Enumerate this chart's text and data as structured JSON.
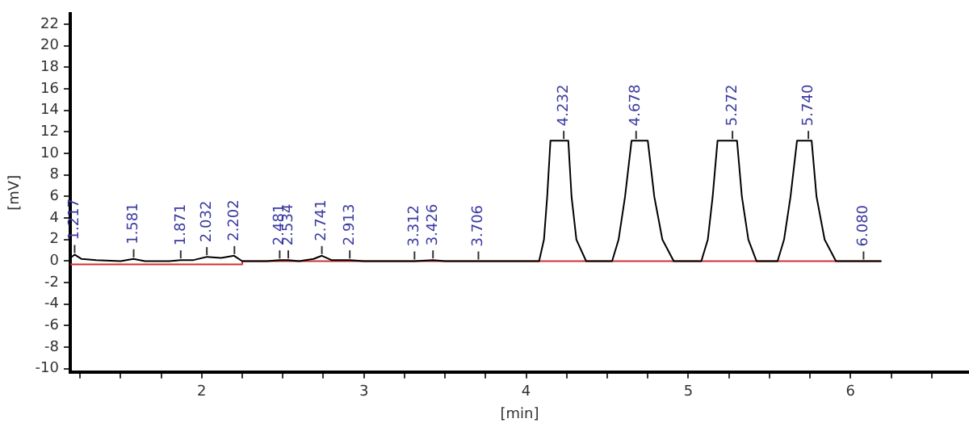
{
  "chart_data": {
    "type": "line",
    "xlabel": "[min]",
    "ylabel": "[mV]",
    "xlim": [
      1.19,
      6.73
    ],
    "ylim": [
      -10.3,
      23
    ],
    "xticks": [
      {
        "value": 1.25,
        "label": null
      },
      {
        "value": 1.5,
        "label": null
      },
      {
        "value": 1.75,
        "label": null
      },
      2,
      {
        "value": 2.25,
        "label": null
      },
      {
        "value": 2.5,
        "label": null
      },
      {
        "value": 2.75,
        "label": null
      },
      3,
      {
        "value": 3.25,
        "label": null
      },
      {
        "value": 3.5,
        "label": null
      },
      {
        "value": 3.75,
        "label": null
      },
      4,
      {
        "value": 4.25,
        "label": null
      },
      {
        "value": 4.5,
        "label": null
      },
      {
        "value": 4.75,
        "label": null
      },
      5,
      {
        "value": 5.25,
        "label": null
      },
      {
        "value": 5.5,
        "label": null
      },
      {
        "value": 5.75,
        "label": null
      },
      6,
      {
        "value": 6.25,
        "label": null
      },
      {
        "value": 6.5,
        "label": null
      }
    ],
    "yticks": [
      -10,
      -8,
      -6,
      -4,
      -2,
      0,
      2,
      4,
      6,
      8,
      10,
      12,
      14,
      16,
      18,
      20,
      22
    ],
    "grid": false,
    "legend": false,
    "marker": "none",
    "line_style": "solid",
    "series": [
      {
        "color": "#000000",
        "x": [
          1.19,
          1.217,
          1.26,
          1.35,
          1.5,
          1.58,
          1.65,
          1.8,
          1.871,
          1.95,
          2.032,
          2.12,
          2.2,
          2.25,
          2.4,
          2.481,
          2.534,
          2.6,
          2.69,
          2.741,
          2.8,
          2.913,
          3.0,
          3.312,
          3.426,
          3.5,
          3.706,
          4.08,
          4.11,
          4.13,
          4.15,
          4.26,
          4.28,
          4.31,
          4.37,
          4.53,
          4.57,
          4.61,
          4.65,
          4.75,
          4.79,
          4.84,
          4.91,
          5.08,
          5.12,
          5.15,
          5.18,
          5.3,
          5.33,
          5.37,
          5.42,
          5.55,
          5.59,
          5.63,
          5.67,
          5.76,
          5.79,
          5.84,
          5.91,
          6.19
        ],
        "values": [
          0.3,
          0.6,
          0.2,
          0.1,
          0,
          0.2,
          0,
          0,
          0.1,
          0.1,
          0.4,
          0.3,
          0.5,
          0,
          0,
          0.1,
          0.1,
          0,
          0.2,
          0.5,
          0.1,
          0.1,
          0,
          0,
          0.1,
          0,
          0,
          0,
          2,
          6,
          11.2,
          11.2,
          6,
          2,
          0,
          0,
          2,
          6,
          11.2,
          11.2,
          6,
          2,
          0,
          0,
          2,
          6,
          11.2,
          11.2,
          6,
          2,
          0,
          0,
          2,
          6,
          11.2,
          11.2,
          6,
          2,
          0,
          0
        ]
      },
      {
        "color": "#cc3333",
        "x": [
          1.19,
          2.25,
          2.25,
          6.19
        ],
        "values": [
          -0.3,
          -0.3,
          0,
          0
        ]
      }
    ],
    "annotations": [
      {
        "text": "1.217",
        "x": 1.217,
        "y": 0.6
      },
      {
        "text": "1.581",
        "x": 1.581,
        "y": 0.2
      },
      {
        "text": "1.871",
        "x": 1.871,
        "y": 0.1
      },
      {
        "text": "2.032",
        "x": 2.032,
        "y": 0.4
      },
      {
        "text": "2.202",
        "x": 2.202,
        "y": 0.5
      },
      {
        "text": "2.481",
        "x": 2.481,
        "y": 0.1
      },
      {
        "text": "2.534",
        "x": 2.534,
        "y": 0.1
      },
      {
        "text": "2.741",
        "x": 2.741,
        "y": 0.5
      },
      {
        "text": "2.913",
        "x": 2.913,
        "y": 0.1
      },
      {
        "text": "3.312",
        "x": 3.312,
        "y": 0
      },
      {
        "text": "3.426",
        "x": 3.426,
        "y": 0.1
      },
      {
        "text": "3.706",
        "x": 3.706,
        "y": 0
      },
      {
        "text": "4.232",
        "x": 4.232,
        "y": 11.2
      },
      {
        "text": "4.678",
        "x": 4.678,
        "y": 11.2
      },
      {
        "text": "5.272",
        "x": 5.272,
        "y": 11.2
      },
      {
        "text": "5.740",
        "x": 5.74,
        "y": 11.2
      },
      {
        "text": "6.080",
        "x": 6.08,
        "y": 0
      }
    ]
  }
}
